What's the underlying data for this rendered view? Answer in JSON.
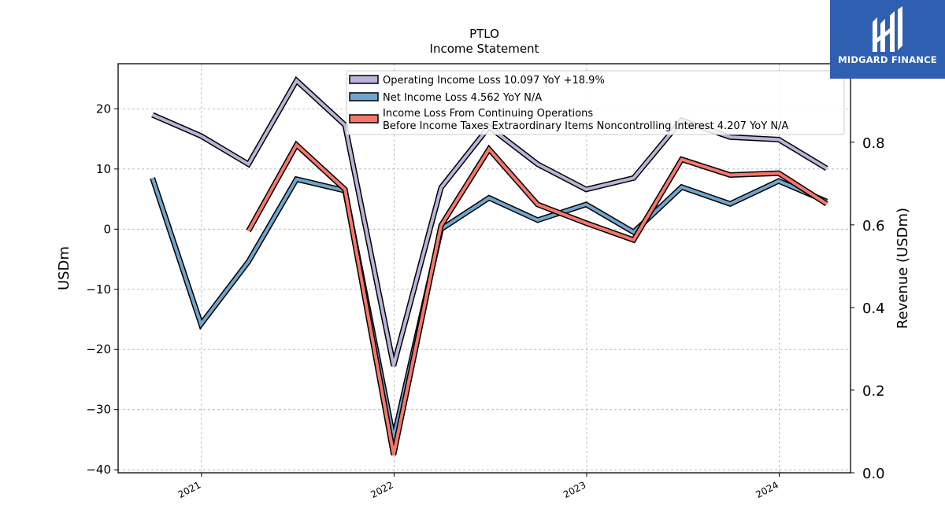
{
  "logo": {
    "text": "MIDGARD FINANCE",
    "icon": "midgard-logo-icon",
    "background": "#2f5fb0"
  },
  "chart_data": {
    "type": "line",
    "title": "PTLO",
    "subtitle": "Income Statement",
    "ylabel": "USDm",
    "y2label": "Revenue (USDm)",
    "ylim": [
      -40.5,
      27.5
    ],
    "y2lim": [
      0.0,
      0.99
    ],
    "yticks": [
      -40,
      -30,
      -20,
      -10,
      0,
      10,
      20
    ],
    "y2ticks": [
      0.0,
      0.2,
      0.4,
      0.6,
      0.8
    ],
    "y2ticklabels": [
      "0.0",
      "0.2",
      "0.4",
      "0.6",
      "0.8"
    ],
    "xlim": [
      "2020-07-27",
      "2024-05-15"
    ],
    "xticks": [
      "2021-01-01",
      "2022-01-01",
      "2023-01-01",
      "2024-01-01"
    ],
    "xticklabels": [
      "2021",
      "2022",
      "2023",
      "2024"
    ],
    "grid": true,
    "legend_position": "top-center",
    "series": [
      {
        "name": "Operating Income Loss  10.097 YoY +18.9%",
        "color": "#b9b4d9",
        "x": [
          "2020-09-30",
          "2020-12-31",
          "2021-03-31",
          "2021-06-30",
          "2021-09-30",
          "2021-12-31",
          "2022-03-31",
          "2022-06-30",
          "2022-09-30",
          "2022-12-31",
          "2023-03-31",
          "2023-06-30",
          "2023-09-30",
          "2023-12-31",
          "2024-03-31"
        ],
        "y": [
          19.0,
          15.5,
          10.8,
          24.7,
          17.3,
          -22.7,
          6.9,
          17.0,
          10.8,
          6.6,
          8.5,
          18.1,
          15.3,
          14.9,
          10.1
        ]
      },
      {
        "name": "Net Income Loss  4.562 YoY N/A",
        "color": "#72a4cb",
        "x": [
          "2020-09-30",
          "2020-12-31",
          "2021-03-31",
          "2021-06-30",
          "2021-09-30",
          "2021-12-31",
          "2022-03-31",
          "2022-06-30",
          "2022-09-30",
          "2022-12-31",
          "2023-03-31",
          "2023-06-30",
          "2023-09-30",
          "2023-12-31",
          "2024-03-31"
        ],
        "y": [
          8.5,
          -15.8,
          -5.4,
          8.3,
          6.4,
          -34.8,
          0.0,
          5.2,
          1.5,
          4.1,
          -0.5,
          7.0,
          4.2,
          8.0,
          4.6
        ]
      },
      {
        "name": "Income Loss From Continuing Operations\nBefore Income Taxes Extraordinary Items Noncontrolling Interest  4.207 YoY N/A",
        "color": "#f4776d",
        "x": [
          "2021-03-31",
          "2021-06-30",
          "2021-09-30",
          "2021-12-31",
          "2022-03-31",
          "2022-06-30",
          "2022-09-30",
          "2022-12-31",
          "2023-03-31",
          "2023-06-30",
          "2023-09-30",
          "2023-12-31",
          "2024-03-31"
        ],
        "y": [
          -0.3,
          14.0,
          6.6,
          -37.5,
          0.6,
          13.3,
          4.1,
          1.0,
          -1.8,
          11.6,
          9.0,
          9.3,
          4.2
        ]
      }
    ]
  }
}
